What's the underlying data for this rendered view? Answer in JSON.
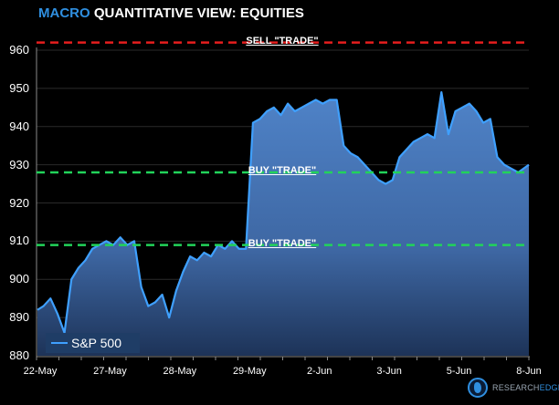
{
  "title": {
    "accent": "MACRO",
    "rest": " QUANTITATIVE VIEW: EQUITIES"
  },
  "legend": {
    "label": "S&P 500"
  },
  "logo": {
    "part1": "RESEARCH",
    "part2": "EDGE"
  },
  "colors": {
    "accent": "#2f8fe0",
    "line": "#3fa0ff",
    "sell": "#e61e1e",
    "buy": "#22d35a",
    "area_top": "#4a7cc0",
    "area_bottom": "#1d3358"
  },
  "levels": [
    {
      "label": "SELL \"TRADE\"",
      "value": 962,
      "type": "sell"
    },
    {
      "label": "BUY \"TRADE\"",
      "value": 928,
      "type": "buy"
    },
    {
      "label": "BUY \"TRADE\"",
      "value": 909,
      "type": "buy"
    }
  ],
  "chart_data": {
    "type": "area",
    "title": "MACRO QUANTITATIVE VIEW: EQUITIES",
    "xlabel": "",
    "ylabel": "",
    "ylim": [
      880,
      960
    ],
    "yticks": [
      880,
      890,
      900,
      910,
      920,
      930,
      940,
      950,
      960
    ],
    "xticks": [
      "22-May",
      "27-May",
      "28-May",
      "29-May",
      "2-Jun",
      "3-Jun",
      "5-Jun",
      "8-Jun"
    ],
    "grid": "horizontal",
    "legend_position": "lower-left",
    "series": [
      {
        "name": "S&P 500",
        "x_index": [
          0,
          0.1,
          0.2,
          0.3,
          0.4,
          0.5,
          0.6,
          0.7,
          0.8,
          0.9,
          1.0,
          1.1,
          1.2,
          1.3,
          1.4,
          1.5,
          1.6,
          1.7,
          1.8,
          1.9,
          2.0,
          2.1,
          2.2,
          2.3,
          2.4,
          2.5,
          2.6,
          2.7,
          2.8,
          2.9,
          3.0,
          3.1,
          3.2,
          3.3,
          3.4,
          3.5,
          3.6,
          3.7,
          3.8,
          3.9,
          4.0,
          4.1,
          4.2,
          4.3,
          4.4,
          4.5,
          4.6,
          4.7,
          4.8,
          4.9,
          5.0,
          5.1,
          5.2,
          5.3,
          5.4,
          5.5,
          5.6,
          5.7,
          5.8,
          5.9,
          6.0,
          6.1,
          6.2,
          6.3,
          6.4,
          6.5,
          6.6,
          6.7,
          6.8,
          6.9,
          7.0
        ],
        "values": [
          892,
          893,
          895,
          891,
          886,
          900,
          903,
          905,
          908,
          909,
          910,
          909,
          911,
          909,
          910,
          898,
          893,
          894,
          896,
          890,
          897,
          902,
          906,
          905,
          907,
          906,
          909,
          908,
          910,
          908,
          908,
          941,
          942,
          944,
          945,
          943,
          946,
          944,
          945,
          946,
          947,
          946,
          947,
          947,
          935,
          933,
          932,
          930,
          928,
          926,
          925,
          926,
          932,
          934,
          936,
          937,
          938,
          937,
          949,
          938,
          944,
          945,
          946,
          944,
          941,
          942,
          932,
          930,
          929,
          928,
          930
        ]
      }
    ]
  }
}
